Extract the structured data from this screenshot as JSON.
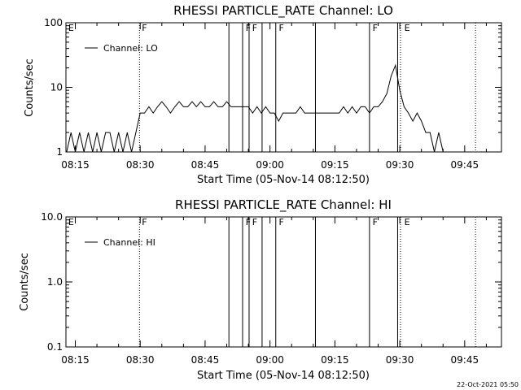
{
  "colors": {
    "background": "#ffffff",
    "foreground": "#000000"
  },
  "footer_timestamp": "22-Oct-2021 05:50",
  "chart_data": [
    {
      "type": "line",
      "title": "RHESSI PARTICLE_RATE Channel: LO",
      "xlabel": "Start Time (05-Nov-14 08:12:50)",
      "ylabel": "Counts/sec",
      "x_tick_labels": [
        "08:15",
        "08:30",
        "08:45",
        "09:00",
        "09:15",
        "09:30",
        "09:45"
      ],
      "y_tick_labels": [
        "1",
        "10",
        "100"
      ],
      "y_scale": "log",
      "ylim": [
        1,
        100
      ],
      "xlim": [
        "08:12:50",
        "09:53:30"
      ],
      "legend": {
        "position": "top-left",
        "entries": [
          "Channel: LO"
        ]
      },
      "series": [
        {
          "name": "Channel: LO",
          "x": [
            "08:13",
            "08:14",
            "08:15",
            "08:16",
            "08:17",
            "08:18",
            "08:19",
            "08:20",
            "08:21",
            "08:22",
            "08:23",
            "08:24",
            "08:25",
            "08:26",
            "08:27",
            "08:28",
            "08:29",
            "08:30",
            "08:31",
            "08:32",
            "08:33",
            "08:34",
            "08:35",
            "08:36",
            "08:37",
            "08:38",
            "08:39",
            "08:40",
            "08:41",
            "08:42",
            "08:43",
            "08:44",
            "08:45",
            "08:46",
            "08:47",
            "08:48",
            "08:49",
            "08:50",
            "08:51",
            "08:52",
            "08:53",
            "08:54",
            "08:55",
            "08:56",
            "08:57",
            "08:58",
            "08:59",
            "09:00",
            "09:01",
            "09:02",
            "09:03",
            "09:04",
            "09:05",
            "09:06",
            "09:07",
            "09:08",
            "09:09",
            "09:10",
            "09:11",
            "09:12",
            "09:13",
            "09:14",
            "09:15",
            "09:16",
            "09:17",
            "09:18",
            "09:19",
            "09:20",
            "09:21",
            "09:22",
            "09:23",
            "09:24",
            "09:25",
            "09:26",
            "09:27",
            "09:28",
            "09:29",
            "09:30",
            "09:31",
            "09:32",
            "09:33",
            "09:34",
            "09:35",
            "09:36",
            "09:37",
            "09:38",
            "09:39",
            "09:40",
            "09:41",
            "09:42",
            "09:43"
          ],
          "values": [
            1,
            2,
            1,
            2,
            1,
            2,
            1,
            2,
            1,
            2,
            2,
            1,
            2,
            1,
            2,
            1,
            2,
            4,
            4,
            5,
            4,
            5,
            6,
            5,
            4,
            5,
            6,
            5,
            5,
            6,
            5,
            6,
            5,
            5,
            6,
            5,
            5,
            6,
            5,
            5,
            5,
            5,
            5,
            4,
            5,
            4,
            5,
            4,
            4,
            3,
            4,
            4,
            4,
            4,
            5,
            4,
            4,
            4,
            4,
            4,
            4,
            4,
            4,
            4,
            5,
            4,
            5,
            4,
            5,
            5,
            4,
            5,
            5,
            6,
            8,
            15,
            22,
            9,
            5,
            4,
            3,
            4,
            3,
            2,
            2,
            1,
            2,
            1,
            1,
            1,
            1
          ],
          "color": "#000000"
        }
      ]
    },
    {
      "type": "line",
      "title": "RHESSI PARTICLE_RATE Channel: HI",
      "xlabel": "Start Time (05-Nov-14 08:12:50)",
      "ylabel": "Counts/sec",
      "x_tick_labels": [
        "08:15",
        "08:30",
        "08:45",
        "09:00",
        "09:15",
        "09:30",
        "09:45"
      ],
      "y_tick_labels": [
        "0.1",
        "1.0",
        "10.0"
      ],
      "y_scale": "log",
      "ylim": [
        0.1,
        10
      ],
      "xlim": [
        "08:12:50",
        "09:53:30"
      ],
      "legend": {
        "position": "top-left",
        "entries": [
          "Channel: HI"
        ]
      },
      "series": [
        {
          "name": "Channel: HI",
          "x": [],
          "values": [],
          "color": "#000000"
        }
      ]
    }
  ],
  "markers": {
    "solid": [
      "08:50:30",
      "08:53:40",
      "08:55:10",
      "08:58:10",
      "09:01:20",
      "09:10:30",
      "09:23:00",
      "09:29:30"
    ],
    "dotted": [
      "08:29:50",
      "09:30:10",
      "09:47:30"
    ],
    "labels": [
      {
        "time": "08:13",
        "text": "E"
      },
      {
        "time": "08:30",
        "text": "F"
      },
      {
        "time": "08:54",
        "text": "F"
      },
      {
        "time": "08:55:30",
        "text": "F"
      },
      {
        "time": "09:01:40",
        "text": "F"
      },
      {
        "time": "09:23:20",
        "text": "F"
      },
      {
        "time": "09:30:40",
        "text": "E"
      }
    ]
  }
}
